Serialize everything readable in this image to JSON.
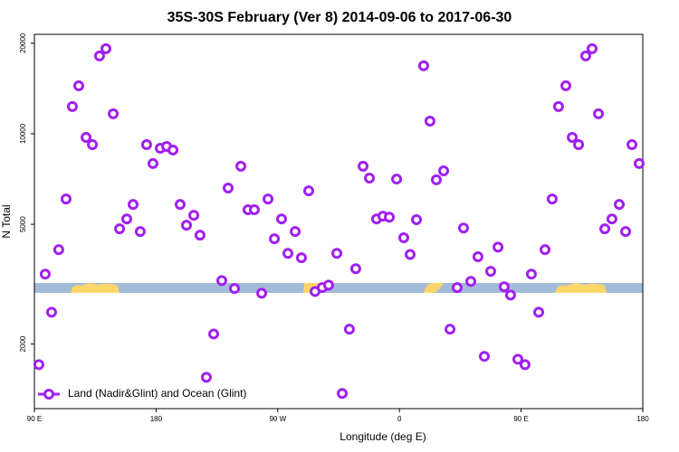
{
  "chart_data": {
    "type": "scatter",
    "title": "35S-30S February (Ver 8)   2014-09-06 to 2017-06-30",
    "x_label": "Longitude (deg E)",
    "y_label": "N Total",
    "log_y": true,
    "xlim": [
      -270,
      180
    ],
    "xticks": [
      {
        "value": -270,
        "label": "90 E"
      },
      {
        "value": -180,
        "label": "180"
      },
      {
        "value": -90,
        "label": "90 W"
      },
      0,
      {
        "value": 90,
        "label": "90 E"
      },
      {
        "value": 180,
        "label": "180"
      }
    ],
    "ylim": [
      1220,
      21400
    ],
    "yticks": [
      2000,
      5000,
      10000,
      20000
    ],
    "legend_position": "bottom-left",
    "series": [
      {
        "name": "Land (Nadir&Glint) and Ocean (Glint)",
        "color": "#a020f0",
        "x": [
          -266.7,
          -262,
          -257.3,
          -252,
          -246.6,
          -241.9,
          -237.2,
          -231.8,
          -227.1,
          -221.8,
          -217.1,
          -211.7,
          -207,
          -201.7,
          -197,
          -191.7,
          -187,
          -182.3,
          -176.9,
          -172.2,
          -167.5,
          -162.2,
          -157.5,
          -152.1,
          -147.5,
          -142.8,
          -137.4,
          -131.4,
          -126.7,
          -122,
          -117.3,
          -112,
          -107.3,
          -101.9,
          -97.2,
          -92.5,
          -87.2,
          -82.5,
          -77.1,
          -72.5,
          -67.1,
          -62.4,
          -57.1,
          -52.4,
          -46.3,
          -42.3,
          -37,
          -32.3,
          -26.9,
          -22.2,
          -16.9,
          -12.2,
          -7.5,
          -2.1,
          3.2,
          7.9,
          12.6,
          17.9,
          22.6,
          27.3,
          32.7,
          37.4,
          42.7,
          47.4,
          52.8,
          58.1,
          62.8,
          67.5,
          72.9,
          77.5,
          82.2,
          87.6,
          92.9,
          97.6,
          103,
          107.7,
          113,
          117.7,
          123.1,
          127.8,
          132.5,
          137.8,
          142.5,
          147.2,
          151.9,
          157.2,
          162.6,
          167.3,
          172,
          177.3
        ],
        "values": [
          1708,
          3416,
          2552,
          4118,
          6070,
          12313,
          14440,
          9724,
          9200,
          18140,
          19180,
          11650,
          4830,
          5210,
          5820,
          4730,
          9200,
          7960,
          8950,
          9075,
          8830,
          5820,
          4966,
          5360,
          4600,
          1550,
          2160,
          3250,
          6600,
          3060,
          7800,
          5590,
          5590,
          2950,
          6070,
          4475,
          5210,
          4005,
          4730,
          3870,
          6460,
          2990,
          3080,
          3140,
          4005,
          1370,
          2240,
          3560,
          7800,
          7120,
          5210,
          5320,
          5280,
          7070,
          4510,
          3970,
          5180,
          16820,
          11010,
          7030,
          7530,
          2240,
          3080,
          4860,
          3230,
          3900,
          1820,
          3490,
          4200,
          3100,
          2910,
          1780,
          1708,
          3416,
          2552,
          4118,
          6070,
          12313,
          14440,
          9724,
          9200,
          18140,
          19180,
          11650,
          4830,
          5210,
          5820,
          4730,
          9200,
          7960
        ]
      }
    ]
  }
}
